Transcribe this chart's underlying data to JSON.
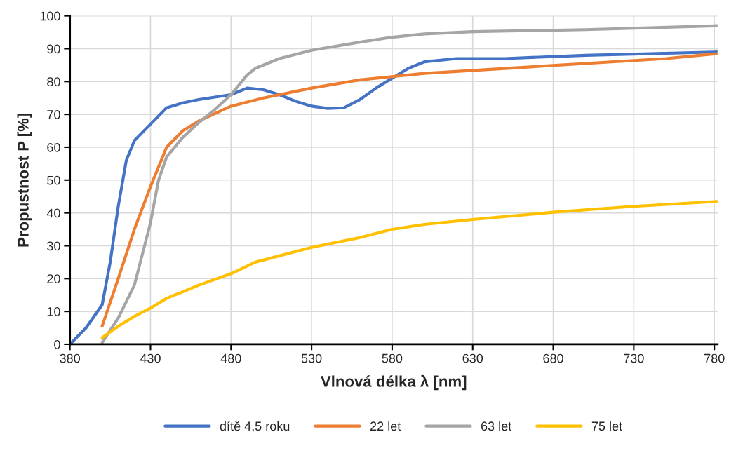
{
  "chart_data": {
    "type": "line",
    "xlabel": "Vlnová délka λ [nm]",
    "ylabel": "Propustnost P [%]",
    "xlim": [
      380,
      782
    ],
    "xticks": [
      380,
      430,
      480,
      530,
      580,
      630,
      680,
      730,
      780
    ],
    "ylim": [
      0,
      100
    ],
    "yticks": [
      0,
      10,
      20,
      30,
      40,
      50,
      60,
      70,
      80,
      90,
      100
    ],
    "grid": true,
    "legend": "bottom",
    "marker": "none",
    "line_style": "solid",
    "series": [
      {
        "name": "dítě 4,5 roku",
        "color": "#4472c4",
        "x": [
          380,
          390,
          400,
          405,
          410,
          415,
          420,
          430,
          440,
          450,
          460,
          480,
          490,
          500,
          510,
          520,
          530,
          540,
          550,
          560,
          570,
          580,
          590,
          600,
          620,
          650,
          700,
          782
        ],
        "values": [
          0,
          5,
          12,
          25,
          42,
          56,
          62,
          67,
          72,
          73.5,
          74.5,
          76,
          78,
          77.5,
          76,
          74,
          72.5,
          71.8,
          72,
          74.5,
          78,
          81,
          84,
          86,
          87,
          87,
          88,
          89
        ]
      },
      {
        "name": "22 let",
        "color": "#ed7d31",
        "x": [
          400,
          410,
          420,
          430,
          440,
          450,
          460,
          480,
          500,
          530,
          560,
          580,
          600,
          650,
          700,
          750,
          782
        ],
        "values": [
          5.5,
          20,
          35,
          48,
          60,
          65,
          68,
          72.5,
          75,
          78,
          80.5,
          81.5,
          82.5,
          84,
          85.5,
          87,
          88.5
        ]
      },
      {
        "name": "63 let",
        "color": "#a5a5a5",
        "x": [
          400,
          410,
          420,
          430,
          435,
          440,
          450,
          460,
          470,
          480,
          490,
          495,
          510,
          530,
          560,
          580,
          600,
          630,
          700,
          782
        ],
        "values": [
          0.5,
          8,
          18,
          37,
          50,
          57,
          63,
          67.5,
          71.5,
          76,
          82,
          84,
          87,
          89.5,
          92,
          93.5,
          94.5,
          95.2,
          95.8,
          97
        ]
      },
      {
        "name": "75 let",
        "color": "#ffc000",
        "x": [
          400,
          410,
          420,
          430,
          440,
          460,
          480,
          495,
          530,
          560,
          580,
          600,
          630,
          680,
          730,
          782
        ],
        "values": [
          2,
          5.5,
          8.5,
          11,
          14,
          18,
          21.5,
          25,
          29.5,
          32.5,
          35,
          36.5,
          38,
          40.2,
          42,
          43.5
        ]
      }
    ]
  }
}
